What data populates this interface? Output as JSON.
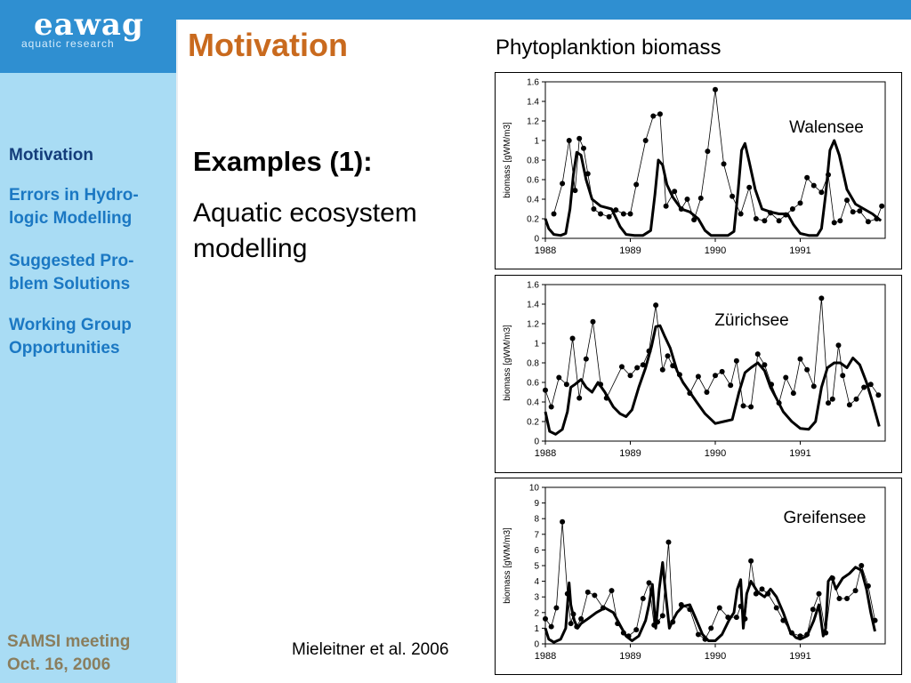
{
  "logo": {
    "word": "eawag",
    "subtitle": "aquatic research"
  },
  "slide_title": "Motivation",
  "sidebar": {
    "items": [
      {
        "label": "Motivation",
        "active": true
      },
      {
        "label": "Errors in Hydro-\nlogic Modelling",
        "active": false
      },
      {
        "label": "Suggested Pro-\nblem Solutions",
        "active": false
      },
      {
        "label": "Working Group\nOpportunities",
        "active": false
      }
    ],
    "footer": "SAMSI meeting\nOct. 16, 2006"
  },
  "content": {
    "example_title": "Examples (1):",
    "example_body": "Aquatic ecosystem\nmodelling"
  },
  "figure_title": "Phytoplanktion biomass",
  "citation": "Mieleitner et al. 2006",
  "colors": {
    "header_blue": "#2f8fd1",
    "sidebar_bg": "#a9dcf4",
    "nav_text": "#1b78c3",
    "title_orange": "#c96a1e",
    "footer_text": "#8a7e5e"
  },
  "chart_data": [
    {
      "type": "line",
      "annotation": "Walensee",
      "ylabel": "biomass [gWM/m3]",
      "xlabel": "",
      "xlim": [
        1988,
        1992
      ],
      "ylim": [
        0,
        1.6
      ],
      "yticks": [
        "0",
        "0.2",
        "0.4",
        "0.6",
        "0.8",
        "1",
        "1.2",
        "1.4",
        "1.6"
      ],
      "xticks": [
        "1988",
        "1989",
        "1990",
        "1991"
      ],
      "series": [
        {
          "style": "observed",
          "x": [
            1988.1,
            1988.2,
            1988.28,
            1988.35,
            1988.4,
            1988.45,
            1988.5,
            1988.57,
            1988.65,
            1988.75,
            1988.83,
            1988.92,
            1989.0,
            1989.07,
            1989.18,
            1989.27,
            1989.35,
            1989.42,
            1989.52,
            1989.6,
            1989.67,
            1989.75,
            1989.83,
            1989.91,
            1990.0,
            1990.1,
            1990.2,
            1990.3,
            1990.4,
            1990.48,
            1990.58,
            1990.65,
            1990.75,
            1990.83,
            1990.91,
            1991.0,
            1991.08,
            1991.16,
            1991.25,
            1991.33,
            1991.4,
            1991.47,
            1991.55,
            1991.62,
            1991.7,
            1991.8,
            1991.9,
            1991.96
          ],
          "y": [
            0.25,
            0.56,
            1.0,
            0.49,
            1.02,
            0.92,
            0.66,
            0.3,
            0.25,
            0.22,
            0.29,
            0.25,
            0.25,
            0.55,
            1.0,
            1.25,
            1.27,
            0.33,
            0.48,
            0.3,
            0.4,
            0.19,
            0.41,
            0.89,
            1.52,
            0.76,
            0.43,
            0.25,
            0.52,
            0.2,
            0.18,
            0.26,
            0.18,
            0.24,
            0.3,
            0.36,
            0.62,
            0.54,
            0.47,
            0.65,
            0.16,
            0.18,
            0.39,
            0.27,
            0.28,
            0.17,
            0.2,
            0.33
          ]
        },
        {
          "style": "model",
          "x": [
            1988,
            1988.04,
            1988.1,
            1988.18,
            1988.24,
            1988.29,
            1988.33,
            1988.37,
            1988.42,
            1988.48,
            1988.55,
            1988.65,
            1988.78,
            1988.88,
            1988.95,
            1989.05,
            1989.15,
            1989.24,
            1989.29,
            1989.33,
            1989.38,
            1989.43,
            1989.5,
            1989.6,
            1989.7,
            1989.8,
            1989.88,
            1989.95,
            1990.05,
            1990.15,
            1990.22,
            1990.27,
            1990.31,
            1990.35,
            1990.4,
            1990.47,
            1990.55,
            1990.65,
            1990.75,
            1990.85,
            1990.92,
            1991.0,
            1991.1,
            1991.2,
            1991.25,
            1991.3,
            1991.35,
            1991.4,
            1991.46,
            1991.55,
            1991.65,
            1991.75,
            1991.85,
            1991.95
          ],
          "y": [
            0.2,
            0.1,
            0.04,
            0.03,
            0.05,
            0.3,
            0.65,
            0.88,
            0.85,
            0.6,
            0.4,
            0.33,
            0.3,
            0.12,
            0.04,
            0.03,
            0.03,
            0.08,
            0.45,
            0.8,
            0.75,
            0.55,
            0.42,
            0.3,
            0.27,
            0.2,
            0.08,
            0.03,
            0.03,
            0.03,
            0.07,
            0.5,
            0.9,
            0.97,
            0.78,
            0.5,
            0.3,
            0.27,
            0.25,
            0.25,
            0.14,
            0.05,
            0.03,
            0.03,
            0.1,
            0.45,
            0.9,
            1.0,
            0.85,
            0.5,
            0.35,
            0.3,
            0.25,
            0.18
          ]
        }
      ]
    },
    {
      "type": "line",
      "annotation": "Zürichsee",
      "ylabel": "biomass [gWM/m3]",
      "xlabel": "",
      "xlim": [
        1988,
        1992
      ],
      "ylim": [
        0,
        1.6
      ],
      "yticks": [
        "0",
        "0.2",
        "0.4",
        "0.6",
        "0.8",
        "1",
        "1.2",
        "1.4",
        "1.6"
      ],
      "xticks": [
        "1988",
        "1989",
        "1990",
        "1991"
      ],
      "series": [
        {
          "style": "observed",
          "x": [
            1988.0,
            1988.07,
            1988.16,
            1988.25,
            1988.32,
            1988.4,
            1988.48,
            1988.56,
            1988.65,
            1988.72,
            1988.9,
            1989.0,
            1989.08,
            1989.15,
            1989.22,
            1989.3,
            1989.38,
            1989.44,
            1989.5,
            1989.58,
            1989.7,
            1989.8,
            1989.9,
            1990.0,
            1990.08,
            1990.18,
            1990.25,
            1990.33,
            1990.42,
            1990.5,
            1990.58,
            1990.66,
            1990.75,
            1990.83,
            1990.92,
            1991.0,
            1991.08,
            1991.16,
            1991.25,
            1991.33,
            1991.38,
            1991.45,
            1991.5,
            1991.58,
            1991.66,
            1991.75,
            1991.83,
            1991.92
          ],
          "y": [
            0.52,
            0.35,
            0.65,
            0.58,
            1.05,
            0.44,
            0.84,
            1.22,
            0.58,
            0.44,
            0.76,
            0.67,
            0.75,
            0.78,
            0.92,
            1.39,
            0.73,
            0.87,
            0.77,
            0.68,
            0.49,
            0.66,
            0.5,
            0.67,
            0.71,
            0.57,
            0.82,
            0.36,
            0.35,
            0.89,
            0.78,
            0.58,
            0.39,
            0.65,
            0.49,
            0.84,
            0.73,
            0.56,
            1.46,
            0.39,
            0.43,
            0.98,
            0.67,
            0.37,
            0.43,
            0.55,
            0.58,
            0.47
          ]
        },
        {
          "style": "model",
          "x": [
            1988,
            1988.05,
            1988.12,
            1988.2,
            1988.26,
            1988.3,
            1988.35,
            1988.42,
            1988.48,
            1988.55,
            1988.62,
            1988.7,
            1988.8,
            1988.88,
            1988.95,
            1989.02,
            1989.1,
            1989.18,
            1989.25,
            1989.3,
            1989.35,
            1989.4,
            1989.47,
            1989.55,
            1989.62,
            1989.7,
            1989.78,
            1989.88,
            1990.0,
            1990.1,
            1990.2,
            1990.28,
            1990.35,
            1990.42,
            1990.5,
            1990.58,
            1990.65,
            1990.73,
            1990.8,
            1990.9,
            1991.0,
            1991.1,
            1991.18,
            1991.25,
            1991.32,
            1991.4,
            1991.47,
            1991.55,
            1991.62,
            1991.7,
            1991.78,
            1991.85,
            1991.93
          ],
          "y": [
            0.3,
            0.1,
            0.07,
            0.12,
            0.3,
            0.55,
            0.58,
            0.63,
            0.55,
            0.5,
            0.6,
            0.5,
            0.35,
            0.28,
            0.25,
            0.32,
            0.55,
            0.75,
            0.97,
            1.17,
            1.18,
            1.08,
            0.95,
            0.72,
            0.6,
            0.5,
            0.4,
            0.28,
            0.18,
            0.2,
            0.22,
            0.5,
            0.7,
            0.75,
            0.8,
            0.72,
            0.55,
            0.42,
            0.3,
            0.2,
            0.13,
            0.12,
            0.2,
            0.55,
            0.75,
            0.8,
            0.8,
            0.75,
            0.85,
            0.78,
            0.6,
            0.4,
            0.15
          ]
        }
      ]
    },
    {
      "type": "line",
      "annotation": "Greifensee",
      "ylabel": "biomass [gWM/m3]",
      "xlabel": "",
      "xlim": [
        1988,
        1992
      ],
      "ylim": [
        0,
        10
      ],
      "yticks": [
        "0",
        "1",
        "2",
        "3",
        "4",
        "5",
        "6",
        "7",
        "8",
        "9",
        "10"
      ],
      "xticks": [
        "1988",
        "1989",
        "1990",
        "1991"
      ],
      "series": [
        {
          "style": "observed",
          "x": [
            1988.0,
            1988.07,
            1988.13,
            1988.2,
            1988.26,
            1988.3,
            1988.33,
            1988.37,
            1988.42,
            1988.5,
            1988.58,
            1988.68,
            1988.78,
            1988.85,
            1988.92,
            1988.98,
            1989.07,
            1989.15,
            1989.22,
            1989.28,
            1989.32,
            1989.38,
            1989.45,
            1989.5,
            1989.6,
            1989.7,
            1989.8,
            1989.88,
            1989.95,
            1990.05,
            1990.15,
            1990.25,
            1990.3,
            1990.35,
            1990.42,
            1990.48,
            1990.55,
            1990.62,
            1990.72,
            1990.8,
            1990.9,
            1991.0,
            1991.08,
            1991.15,
            1991.22,
            1991.3,
            1991.38,
            1991.46,
            1991.55,
            1991.65,
            1991.72,
            1991.8,
            1991.88
          ],
          "y": [
            1.6,
            1.1,
            2.3,
            7.8,
            3.2,
            1.3,
            1.9,
            1.1,
            1.6,
            3.3,
            3.1,
            2.3,
            3.4,
            1.3,
            0.7,
            0.5,
            0.9,
            2.9,
            3.9,
            1.2,
            1.4,
            1.8,
            6.5,
            1.4,
            2.5,
            2.2,
            0.6,
            0.3,
            1.0,
            2.3,
            1.7,
            1.7,
            2.4,
            1.6,
            5.3,
            3.2,
            3.5,
            3.2,
            2.3,
            1.5,
            0.7,
            0.5,
            0.6,
            2.2,
            3.2,
            0.7,
            4.2,
            2.9,
            2.9,
            3.4,
            5.0,
            3.7,
            1.5
          ]
        },
        {
          "style": "model",
          "x": [
            1988,
            1988.04,
            1988.1,
            1988.18,
            1988.24,
            1988.28,
            1988.3,
            1988.34,
            1988.38,
            1988.42,
            1988.5,
            1988.6,
            1988.7,
            1988.8,
            1988.88,
            1988.95,
            1989.02,
            1989.1,
            1989.18,
            1989.22,
            1989.26,
            1989.3,
            1989.34,
            1989.38,
            1989.42,
            1989.46,
            1989.5,
            1989.55,
            1989.62,
            1989.7,
            1989.78,
            1989.85,
            1989.92,
            1990.0,
            1990.08,
            1990.16,
            1990.22,
            1990.26,
            1990.3,
            1990.33,
            1990.37,
            1990.42,
            1990.5,
            1990.58,
            1990.65,
            1990.72,
            1990.8,
            1990.88,
            1990.95,
            1991.0,
            1991.08,
            1991.16,
            1991.22,
            1991.27,
            1991.3,
            1991.33,
            1991.37,
            1991.42,
            1991.5,
            1991.58,
            1991.65,
            1991.72,
            1991.78,
            1991.83,
            1991.88
          ],
          "y": [
            1.0,
            0.3,
            0.1,
            0.3,
            1.0,
            3.9,
            2.5,
            1.5,
            1.0,
            1.3,
            1.6,
            2.0,
            2.3,
            2.0,
            1.2,
            0.5,
            0.2,
            0.5,
            1.5,
            2.5,
            3.8,
            1.0,
            3.5,
            5.2,
            3.0,
            1.0,
            1.5,
            2.0,
            2.4,
            2.5,
            1.5,
            0.6,
            0.2,
            0.2,
            0.6,
            1.5,
            2.0,
            3.5,
            4.1,
            1.0,
            3.2,
            4.0,
            3.3,
            3.0,
            3.5,
            3.0,
            2.0,
            0.8,
            0.4,
            0.3,
            0.5,
            1.5,
            2.5,
            0.5,
            1.0,
            4.0,
            4.3,
            3.5,
            4.2,
            4.5,
            4.9,
            4.7,
            3.5,
            2.0,
            0.8
          ]
        }
      ]
    }
  ]
}
